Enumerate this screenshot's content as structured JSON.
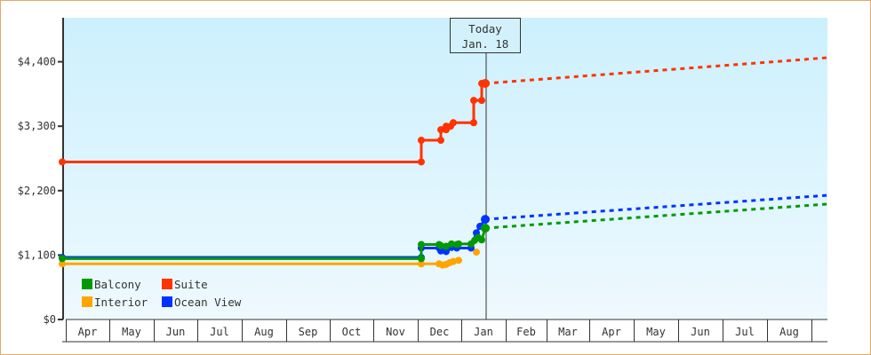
{
  "chart_data": {
    "type": "line",
    "title": "",
    "xlabel": "",
    "ylabel": "",
    "ylim": [
      0,
      4950
    ],
    "yticks": [
      "$0",
      "$1,100",
      "$2,200",
      "$3,300",
      "$4,400"
    ],
    "ytick_values": [
      0,
      1100,
      2200,
      3300,
      4400
    ],
    "categories": [
      "Apr",
      "May",
      "Jun",
      "Jul",
      "Aug",
      "Sep",
      "Oct",
      "Nov",
      "Dec",
      "Jan",
      "Feb",
      "Mar",
      "Apr",
      "May",
      "Jun",
      "Jul",
      "Aug"
    ],
    "today_marker": {
      "line1": "Today",
      "line2": "Jan. 18"
    },
    "grid": false,
    "legend_position": "bottom-left inside",
    "series": [
      {
        "name": "Balcony",
        "color": "#009a00",
        "historical": [
          [
            "Apr",
            1040
          ],
          [
            "Nov end",
            1040
          ],
          [
            "Dec",
            1280
          ],
          [
            "Dec mid",
            1260
          ],
          [
            "Dec late",
            1280
          ],
          [
            "Jan early",
            1340
          ],
          [
            "Jan 18",
            1560
          ]
        ],
        "projection": [
          [
            "Jan 18",
            1560
          ],
          [
            "Aug end",
            1970
          ]
        ]
      },
      {
        "name": "Suite",
        "color": "#ff3300",
        "historical": [
          [
            "Apr",
            2690
          ],
          [
            "Nov end",
            2690
          ],
          [
            "Dec",
            3060
          ],
          [
            "Dec mid",
            3280
          ],
          [
            "Dec late",
            3360
          ],
          [
            "Jan early",
            3740
          ],
          [
            "Jan 18",
            4030
          ]
        ],
        "projection": [
          [
            "Jan 18",
            4030
          ],
          [
            "Aug end",
            4470
          ]
        ]
      },
      {
        "name": "Interior",
        "color": "#ffa500",
        "historical": [
          [
            "Apr",
            950
          ],
          [
            "Nov end",
            950
          ],
          [
            "Dec",
            950
          ],
          [
            "Dec mid",
            920
          ],
          [
            "Dec late",
            1000
          ],
          [
            "Jan early",
            1150
          ]
        ],
        "projection": []
      },
      {
        "name": "Ocean View",
        "color": "#0033ff",
        "historical": [
          [
            "Apr",
            1060
          ],
          [
            "Nov end",
            1060
          ],
          [
            "Dec",
            1220
          ],
          [
            "Dec mid",
            1180
          ],
          [
            "Dec late",
            1260
          ],
          [
            "Jan early",
            1610
          ],
          [
            "Jan 18",
            1710
          ]
        ],
        "projection": [
          [
            "Jan 18",
            1710
          ],
          [
            "Aug end",
            2120
          ]
        ]
      }
    ]
  },
  "legend": {
    "items": [
      {
        "label": "Balcony",
        "color": "#009a00"
      },
      {
        "label": "Suite",
        "color": "#ff3300"
      },
      {
        "label": "Interior",
        "color": "#ffa500"
      },
      {
        "label": "Ocean View",
        "color": "#0033ff"
      }
    ]
  },
  "today": {
    "line1": "Today",
    "line2": "Jan. 18"
  }
}
